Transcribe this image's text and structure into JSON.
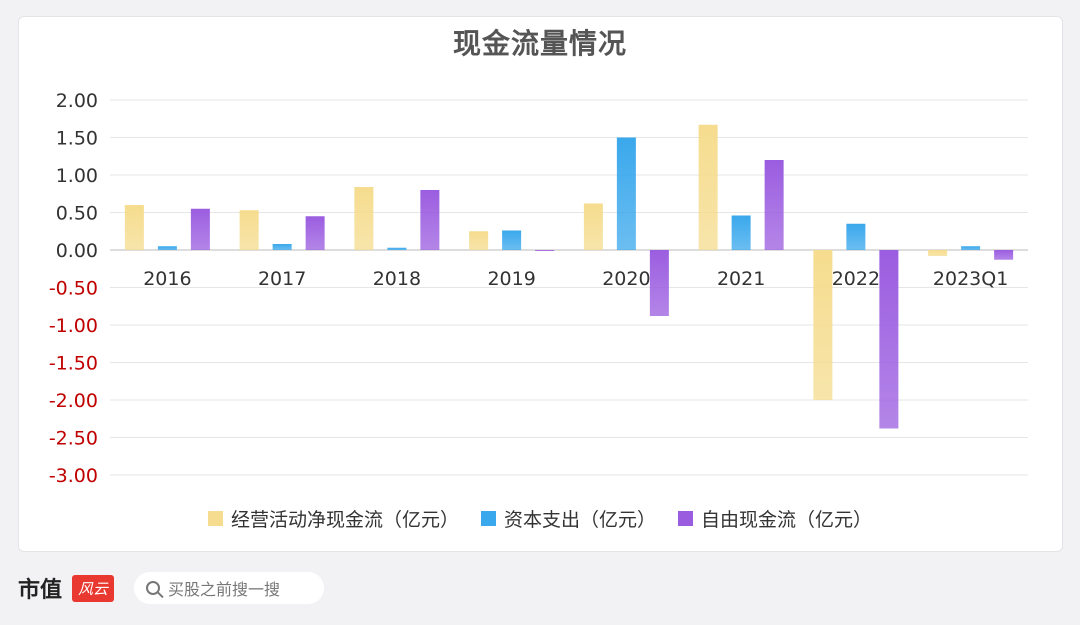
{
  "chart_data": {
    "type": "bar",
    "title": "现金流量情况",
    "categories": [
      "2016",
      "2017",
      "2018",
      "2019",
      "2020",
      "2021",
      "2022",
      "2023Q1"
    ],
    "series": [
      {
        "name": "经营活动净现金流（亿元）",
        "color": "#f5dc8e",
        "values": [
          0.6,
          0.53,
          0.84,
          0.25,
          0.62,
          1.67,
          -2.0,
          -0.08
        ]
      },
      {
        "name": "资本支出（亿元）",
        "color": "#3aa8ec",
        "values": [
          0.05,
          0.08,
          0.03,
          0.26,
          1.5,
          0.46,
          0.35,
          0.05
        ]
      },
      {
        "name": "自由现金流（亿元）",
        "color": "#9b5de0",
        "values": [
          0.55,
          0.45,
          0.8,
          -0.01,
          -0.88,
          1.2,
          -2.38,
          -0.13
        ]
      }
    ],
    "y_ticks": [
      "2.00",
      "1.50",
      "1.00",
      "0.50",
      "0.00",
      "-0.50",
      "-1.00",
      "-1.50",
      "-2.00",
      "-2.50",
      "-3.00"
    ],
    "ylim": [
      -3.0,
      2.0
    ],
    "negative_tick_color": "#c00000",
    "grid": true,
    "legend_position": "bottom"
  },
  "footer": {
    "brand_text": "市值",
    "brand_mark": "风云",
    "search_placeholder": "买股之前搜一搜"
  }
}
